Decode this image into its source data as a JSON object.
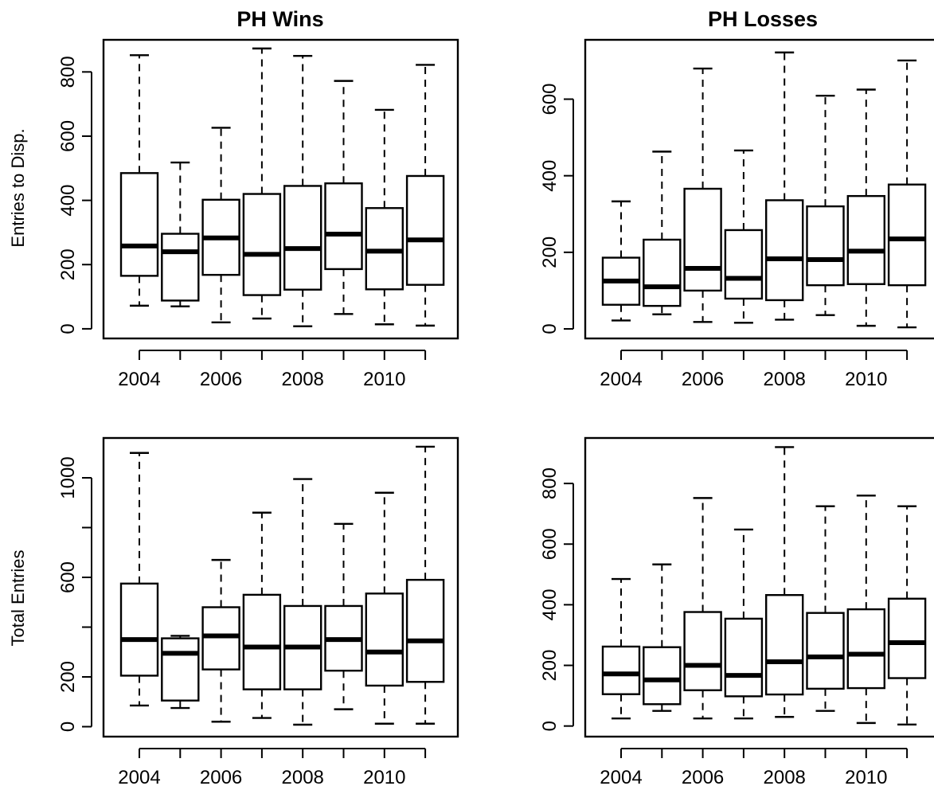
{
  "chart_data": [
    {
      "type": "box",
      "title": "PH Wins",
      "ylabel": "Entries to Disp.",
      "xlabel": "",
      "categories": [
        2004,
        2005,
        2006,
        2007,
        2008,
        2009,
        2010,
        2011
      ],
      "x_tick_labels": [
        "2004",
        "2006",
        "2008",
        "2010"
      ],
      "y_ticks": [
        0,
        200,
        400,
        600,
        800
      ],
      "ylim": [
        -30,
        900
      ],
      "boxes": [
        {
          "x": 2004,
          "min": 72,
          "q1": 165,
          "median": 258,
          "q3": 485,
          "max": 852
        },
        {
          "x": 2005,
          "min": 70,
          "q1": 88,
          "median": 240,
          "q3": 296,
          "max": 518
        },
        {
          "x": 2006,
          "min": 20,
          "q1": 168,
          "median": 283,
          "q3": 402,
          "max": 626
        },
        {
          "x": 2007,
          "min": 32,
          "q1": 105,
          "median": 232,
          "q3": 420,
          "max": 873
        },
        {
          "x": 2008,
          "min": 8,
          "q1": 122,
          "median": 250,
          "q3": 445,
          "max": 850
        },
        {
          "x": 2009,
          "min": 46,
          "q1": 186,
          "median": 295,
          "q3": 453,
          "max": 772
        },
        {
          "x": 2010,
          "min": 14,
          "q1": 123,
          "median": 242,
          "q3": 376,
          "max": 682
        },
        {
          "x": 2011,
          "min": 10,
          "q1": 137,
          "median": 277,
          "q3": 476,
          "max": 822
        }
      ]
    },
    {
      "type": "box",
      "title": "PH Losses",
      "ylabel": "",
      "xlabel": "",
      "categories": [
        2004,
        2005,
        2006,
        2007,
        2008,
        2009,
        2010,
        2011
      ],
      "x_tick_labels": [
        "2004",
        "2006",
        "2008",
        "2010"
      ],
      "y_ticks": [
        0,
        200,
        400,
        600
      ],
      "ylim": [
        -25,
        755
      ],
      "boxes": [
        {
          "x": 2004,
          "min": 22,
          "q1": 63,
          "median": 125,
          "q3": 186,
          "max": 333
        },
        {
          "x": 2005,
          "min": 38,
          "q1": 60,
          "median": 110,
          "q3": 233,
          "max": 463
        },
        {
          "x": 2006,
          "min": 18,
          "q1": 100,
          "median": 158,
          "q3": 366,
          "max": 680
        },
        {
          "x": 2007,
          "min": 16,
          "q1": 79,
          "median": 132,
          "q3": 258,
          "max": 466
        },
        {
          "x": 2008,
          "min": 24,
          "q1": 75,
          "median": 183,
          "q3": 336,
          "max": 722
        },
        {
          "x": 2009,
          "min": 36,
          "q1": 114,
          "median": 181,
          "q3": 320,
          "max": 609
        },
        {
          "x": 2010,
          "min": 8,
          "q1": 117,
          "median": 203,
          "q3": 347,
          "max": 625
        },
        {
          "x": 2011,
          "min": 4,
          "q1": 114,
          "median": 235,
          "q3": 377,
          "max": 701
        }
      ]
    },
    {
      "type": "box",
      "title": "",
      "ylabel": "Total Entries",
      "xlabel": "",
      "categories": [
        2004,
        2005,
        2006,
        2007,
        2008,
        2009,
        2010,
        2011
      ],
      "x_tick_labels": [
        "2004",
        "2006",
        "2008",
        "2010"
      ],
      "y_ticks": [
        0,
        200,
        600,
        1000
      ],
      "y_tick_positions": [
        0,
        200,
        400,
        600,
        800,
        1000
      ],
      "ylim": [
        -40,
        1160
      ],
      "boxes": [
        {
          "x": 2004,
          "min": 85,
          "q1": 205,
          "median": 350,
          "q3": 575,
          "max": 1100
        },
        {
          "x": 2005,
          "min": 75,
          "q1": 105,
          "median": 295,
          "q3": 355,
          "max": 365
        },
        {
          "x": 2006,
          "min": 20,
          "q1": 230,
          "median": 365,
          "q3": 480,
          "max": 670
        },
        {
          "x": 2007,
          "min": 35,
          "q1": 150,
          "median": 320,
          "q3": 530,
          "max": 860
        },
        {
          "x": 2008,
          "min": 8,
          "q1": 150,
          "median": 320,
          "q3": 485,
          "max": 995
        },
        {
          "x": 2009,
          "min": 70,
          "q1": 225,
          "median": 350,
          "q3": 485,
          "max": 815
        },
        {
          "x": 2010,
          "min": 12,
          "q1": 165,
          "median": 300,
          "q3": 535,
          "max": 940
        },
        {
          "x": 2011,
          "min": 12,
          "q1": 180,
          "median": 345,
          "q3": 590,
          "max": 1125
        }
      ]
    },
    {
      "type": "box",
      "title": "",
      "ylabel": "",
      "xlabel": "",
      "categories": [
        2004,
        2005,
        2006,
        2007,
        2008,
        2009,
        2010,
        2011
      ],
      "x_tick_labels": [
        "2004",
        "2006",
        "2008",
        "2010"
      ],
      "y_ticks": [
        0,
        200,
        400,
        600,
        800
      ],
      "ylim": [
        -35,
        950
      ],
      "boxes": [
        {
          "x": 2004,
          "min": 25,
          "q1": 105,
          "median": 172,
          "q3": 262,
          "max": 485
        },
        {
          "x": 2005,
          "min": 50,
          "q1": 72,
          "median": 152,
          "q3": 260,
          "max": 533
        },
        {
          "x": 2006,
          "min": 25,
          "q1": 118,
          "median": 200,
          "q3": 376,
          "max": 752
        },
        {
          "x": 2007,
          "min": 25,
          "q1": 98,
          "median": 167,
          "q3": 354,
          "max": 648
        },
        {
          "x": 2008,
          "min": 30,
          "q1": 104,
          "median": 212,
          "q3": 432,
          "max": 920
        },
        {
          "x": 2009,
          "min": 50,
          "q1": 123,
          "median": 228,
          "q3": 373,
          "max": 725
        },
        {
          "x": 2010,
          "min": 10,
          "q1": 125,
          "median": 237,
          "q3": 385,
          "max": 760
        },
        {
          "x": 2011,
          "min": 5,
          "q1": 158,
          "median": 275,
          "q3": 420,
          "max": 725
        }
      ]
    }
  ]
}
